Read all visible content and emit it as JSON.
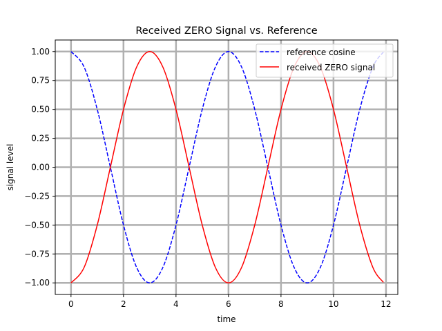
{
  "chart_data": {
    "type": "line",
    "title": "Received ZERO Signal vs. Reference",
    "xlabel": "time",
    "ylabel": "signal level",
    "xlim": [
      -0.6,
      12.45
    ],
    "ylim": [
      -1.1,
      1.1
    ],
    "x_ticks": [
      0,
      2,
      4,
      6,
      8,
      10,
      12
    ],
    "x_tick_labels": [
      "0",
      "2",
      "4",
      "6",
      "8",
      "10",
      "12"
    ],
    "y_ticks": [
      -1.0,
      -0.75,
      -0.5,
      -0.25,
      0.0,
      0.25,
      0.5,
      0.75,
      1.0
    ],
    "y_tick_labels": [
      "−1.00",
      "−0.75",
      "−0.50",
      "−0.25",
      "0.00",
      "0.25",
      "0.50",
      "0.75",
      "1.00"
    ],
    "grid": true,
    "legend_position": "top-right",
    "series": [
      {
        "name": "reference cosine",
        "color": "#0000ff",
        "style": "dashed",
        "x": [
          0,
          0.5,
          1,
          1.5,
          2,
          2.5,
          3,
          3.5,
          4,
          4.5,
          5,
          5.5,
          6,
          6.5,
          7,
          7.5,
          8,
          8.5,
          9,
          9.5,
          10,
          10.5,
          11,
          11.5,
          11.9
        ],
        "y": [
          1.0,
          0.866,
          0.5,
          0.0,
          -0.5,
          -0.866,
          -1.0,
          -0.866,
          -0.5,
          0.0,
          0.5,
          0.866,
          1.0,
          0.866,
          0.5,
          0.0,
          -0.5,
          -0.866,
          -1.0,
          -0.866,
          -0.5,
          0.0,
          0.5,
          0.866,
          0.995
        ]
      },
      {
        "name": "received ZERO signal",
        "color": "#ff0000",
        "style": "solid",
        "x": [
          0,
          0.5,
          1,
          1.5,
          2,
          2.5,
          3,
          3.5,
          4,
          4.5,
          5,
          5.5,
          6,
          6.5,
          7,
          7.5,
          8,
          8.5,
          9,
          9.5,
          10,
          10.5,
          11,
          11.5,
          11.9
        ],
        "y": [
          -1.0,
          -0.866,
          -0.5,
          0.0,
          0.5,
          0.866,
          1.0,
          0.866,
          0.5,
          0.0,
          -0.5,
          -0.866,
          -1.0,
          -0.866,
          -0.5,
          0.0,
          0.5,
          0.866,
          1.0,
          0.866,
          0.5,
          0.0,
          -0.5,
          -0.866,
          -0.995
        ]
      }
    ]
  }
}
